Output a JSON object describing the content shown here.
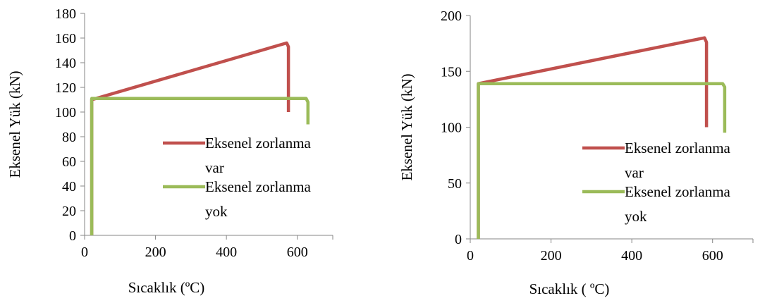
{
  "chart_data": [
    {
      "type": "line",
      "xlabel": "Sıcaklık (ºC)",
      "ylabel": "Eksenel Yük (kN)",
      "xlim": [
        0,
        700
      ],
      "ylim": [
        0,
        180
      ],
      "xticks": [
        "0",
        "200",
        "400",
        "600"
      ],
      "yticks": [
        "0",
        "20",
        "40",
        "60",
        "80",
        "100",
        "120",
        "140",
        "160",
        "180"
      ],
      "legend_position": "right",
      "series": [
        {
          "name": "Eksenel zorlanma var",
          "name_lines": [
            "Eksenel zorlanma",
            "var"
          ],
          "color": "#c0504d",
          "points": [
            [
              20,
              0
            ],
            [
              20,
              110
            ],
            [
              570,
              156
            ],
            [
              575,
              153
            ],
            [
              575,
              100
            ]
          ]
        },
        {
          "name": "Eksenel zorlanma yok",
          "name_lines": [
            "Eksenel zorlanma",
            "yok"
          ],
          "color": "#9bbb59",
          "points": [
            [
              20,
              0
            ],
            [
              20,
              111
            ],
            [
              625,
              111
            ],
            [
              630,
              108
            ],
            [
              630,
              90
            ]
          ]
        }
      ]
    },
    {
      "type": "line",
      "xlabel": "Sıcaklık ( ºC)",
      "ylabel": "Eksenel Yük (kN)",
      "xlim": [
        0,
        700
      ],
      "ylim": [
        0,
        200
      ],
      "xticks": [
        "0",
        "200",
        "400",
        "600"
      ],
      "yticks": [
        "0",
        "50",
        "100",
        "150",
        "200"
      ],
      "legend_position": "right",
      "series": [
        {
          "name": "Eksenel zorlanma var",
          "name_lines": [
            "Eksenel zorlanma",
            "var"
          ],
          "color": "#c0504d",
          "points": [
            [
              20,
              0
            ],
            [
              20,
              139
            ],
            [
              580,
              180
            ],
            [
              585,
              176
            ],
            [
              585,
              100
            ]
          ]
        },
        {
          "name": "Eksenel zorlanma yok",
          "name_lines": [
            "Eksenel zorlanma",
            "yok"
          ],
          "color": "#9bbb59",
          "points": [
            [
              20,
              0
            ],
            [
              20,
              139
            ],
            [
              625,
              139
            ],
            [
              630,
              136
            ],
            [
              630,
              95
            ]
          ]
        }
      ]
    }
  ]
}
